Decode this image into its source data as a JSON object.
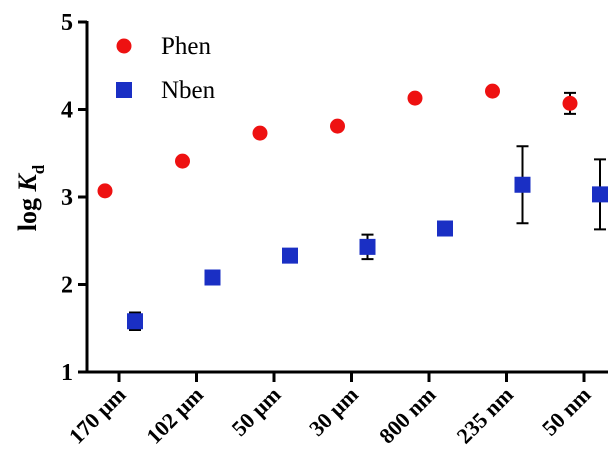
{
  "chart_data": {
    "type": "scatter",
    "title": "",
    "xlabel": "",
    "ylabel": "log K",
    "ylabel_main": "log ",
    "ylabel_italic": "K",
    "ylabel_sub": "d",
    "ylim": [
      1,
      5
    ],
    "yticks": [
      "1",
      "2",
      "3",
      "4",
      "5"
    ],
    "categories": [
      "170 µm",
      "102 µm",
      "50 µm",
      "30 µm",
      "800 nm",
      "235 nm",
      "50 nm"
    ],
    "legend_position": "top-left",
    "grid": false,
    "series": [
      {
        "name": "Phen",
        "marker": "circle",
        "color": "#ee1111",
        "values": [
          3.07,
          3.41,
          3.73,
          3.81,
          4.13,
          4.21,
          4.07
        ],
        "errors": [
          0,
          0,
          0,
          0,
          0,
          0,
          0.12
        ]
      },
      {
        "name": "Nben",
        "marker": "square",
        "color": "#1a2fc4",
        "values": [
          1.58,
          2.08,
          2.33,
          2.43,
          2.64,
          3.14,
          3.03
        ],
        "errors": [
          0.1,
          0,
          0,
          0.14,
          0,
          0.44,
          0.4
        ]
      }
    ]
  }
}
